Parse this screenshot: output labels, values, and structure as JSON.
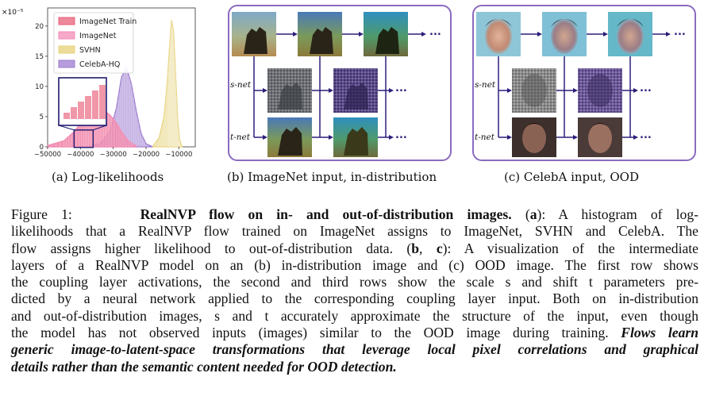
{
  "chart_data": {
    "type": "area",
    "y_multiplier": "×10⁻⁵",
    "x_ticks": [
      "−50000",
      "−40000",
      "−30000",
      "−20000",
      "−10000"
    ],
    "y_ticks": [
      "0",
      "5",
      "10",
      "15",
      "20"
    ],
    "xlim": [
      -50000,
      -5000
    ],
    "ylim": [
      0,
      23
    ],
    "legend_placement": "top-left",
    "series": [
      {
        "name": "ImageNet Train",
        "color": "#e8607a",
        "x": [
          -50000,
          -45000,
          -42000,
          -39000,
          -37000,
          -35000,
          -33000,
          -31000,
          -29000,
          -27000,
          -25000,
          -23000
        ],
        "values": [
          0.2,
          1.0,
          2.4,
          4.4,
          5.6,
          6.3,
          6.0,
          5.2,
          3.8,
          2.0,
          0.8,
          0.1
        ]
      },
      {
        "name": "ImageNet",
        "color": "#f48cb8",
        "x": [
          -50000,
          -45000,
          -42000,
          -39000,
          -37000,
          -35000,
          -33000,
          -31000,
          -29000,
          -27000,
          -25000,
          -23000
        ],
        "values": [
          0.2,
          1.0,
          2.5,
          4.5,
          5.8,
          6.4,
          6.1,
          5.3,
          3.9,
          2.1,
          0.8,
          0.1
        ]
      },
      {
        "name": "SVHN",
        "color": "#e6d27a",
        "x": [
          -18000,
          -16000,
          -14500,
          -13500,
          -12800,
          -12200,
          -11600,
          -11000,
          -10400,
          -9800,
          -9000
        ],
        "values": [
          0,
          1.5,
          5.0,
          11.0,
          17.0,
          21.0,
          19.0,
          12.0,
          5.0,
          1.2,
          0
        ]
      },
      {
        "name": "CelebA-HQ",
        "color": "#9c7bd0",
        "x": [
          -38000,
          -34000,
          -31000,
          -29000,
          -27500,
          -26000,
          -24500,
          -23000,
          -21500,
          -20000,
          -18000
        ],
        "values": [
          0,
          0.5,
          2.5,
          6.5,
          11.5,
          13.2,
          10.5,
          6.0,
          2.2,
          0.5,
          0
        ]
      }
    ]
  },
  "captions": {
    "a": "(a) Log-likelihoods",
    "b": "(b) ImageNet input, in-distribution",
    "c": "(c) CelebA input, OOD"
  },
  "row_labels": {
    "s_net": "s-net",
    "t_net": "t-net"
  },
  "ellipsis": "...",
  "figure": {
    "label": "Figure 1:",
    "title": "RealNVP flow on in- and out-of-distribution images.",
    "line1_a": "(",
    "line1_b": "a",
    "line1_c": "): A histogram of log-",
    "line2": "likelihoods that a RealNVP flow trained on ImageNet assigns to ImageNet, SVHN and CelebA. The",
    "line3_a": "flow assigns higher likelihood to out-of-distribution data. (",
    "line3_b": "b",
    "line3_c": ", ",
    "line3_d": "c",
    "line3_e": "): A visualization of the intermediate",
    "line4": "layers of a RealNVP model on an (b) in-distribution image and (c) OOD image. The first row shows",
    "line5": "the coupling layer activations, the second and third rows show the scale s and shift t parameters pre-",
    "line6": "dicted by a neural network applied to the corresponding coupling layer input. Both on in-distribution",
    "line7": "and out-of-distribution images, s and t accurately approximate the structure of the input, even though",
    "line8_a": "the model has not observed inputs (images) similar to the OOD image during training. ",
    "line8_b": "Flows learn",
    "line9": "generic image-to-latent-space transformations that leverage local pixel correlations and graphical",
    "line10": "details rather than the semantic content needed for OOD detection."
  }
}
